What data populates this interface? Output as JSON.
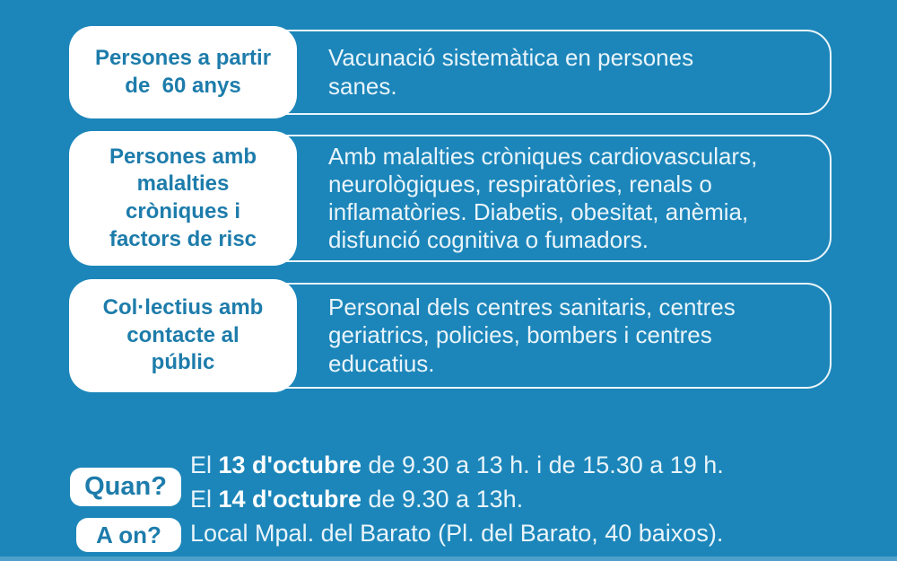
{
  "page": {
    "language": "ca",
    "background_color": "#1c86ba",
    "accent_text_color": "#1d7cab",
    "body_text_color": "#e9f4fa",
    "pill_background_color": "#ffffff"
  },
  "rows": [
    {
      "label": "Persones a partir\nde  60 anys",
      "description": "Vacunació sistemàtica en persones\nsanes."
    },
    {
      "label": "Persones amb\nmalalties\ncròniques i\nfactors de risc",
      "description": "Amb malalties cròniques cardiovasculars,\nneurològiques, respiratòries, renals o\ninflamatòries. Diabetis, obesitat, anèmia,\ndisfunció cognitiva o fumadors."
    },
    {
      "label": "Col·lectius amb\ncontacte al\npúblic",
      "description": "Personal dels centres sanitaris, centres\ngeriatrics, policies, bombers i centres\neducatius."
    }
  ],
  "footer": {
    "when_badge": "Quan?",
    "where_badge": "A on?",
    "when_lines": [
      {
        "pre": "El ",
        "bold": "13 d'octubre",
        "post": " de 9.30 a 13 h. i de 15.30 a 19 h."
      },
      {
        "pre": "El ",
        "bold": "14 d'octubre",
        "post": " de 9.30 a 13h."
      }
    ],
    "where_line": "Local Mpal. del Barato (Pl. del Barato, 40 baixos)."
  }
}
